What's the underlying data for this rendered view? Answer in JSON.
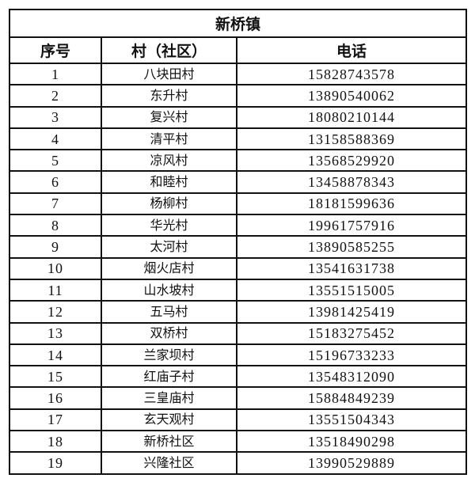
{
  "title": "新桥镇",
  "headers": [
    "序号",
    "村（社区）",
    "电话"
  ],
  "rows": [
    [
      "1",
      "八块田村",
      "15828743578"
    ],
    [
      "2",
      "东升村",
      "13890540062"
    ],
    [
      "3",
      "复兴村",
      "18080210144"
    ],
    [
      "4",
      "清平村",
      "13158588369"
    ],
    [
      "5",
      "凉风村",
      "13568529920"
    ],
    [
      "6",
      "和睦村",
      "13458878343"
    ],
    [
      "7",
      "杨柳村",
      "18181599636"
    ],
    [
      "8",
      "华光村",
      "19961757916"
    ],
    [
      "9",
      "太河村",
      "13890585255"
    ],
    [
      "10",
      "烟火店村",
      "13541631738"
    ],
    [
      "11",
      "山水坡村",
      "13551515005"
    ],
    [
      "12",
      "五马村",
      "13981425419"
    ],
    [
      "13",
      "双桥村",
      "15183275452"
    ],
    [
      "14",
      "兰家坝村",
      "15196733233"
    ],
    [
      "15",
      "红庙子村",
      "13548312090"
    ],
    [
      "16",
      "三皇庙村",
      "15884849239"
    ],
    [
      "17",
      "玄天观村",
      "13551504343"
    ],
    [
      "18",
      "新桥社区",
      "13518490298"
    ],
    [
      "19",
      "兴隆社区",
      "13990529889"
    ]
  ]
}
